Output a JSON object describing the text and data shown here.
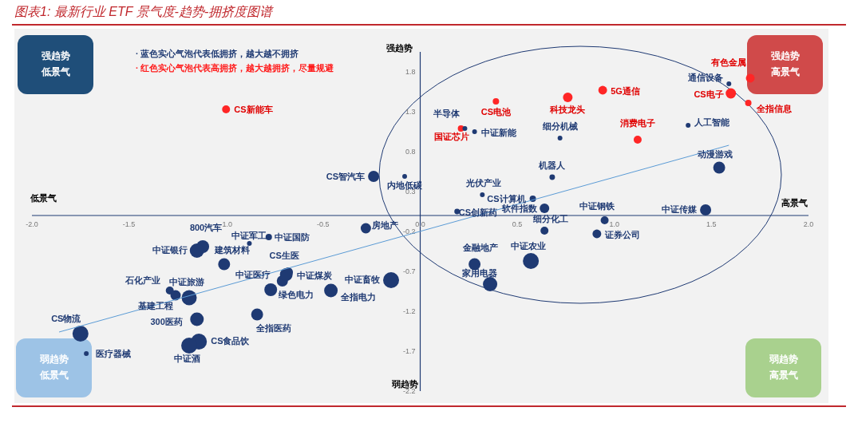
{
  "chart_data": {
    "type": "bubble",
    "title": "图表1: 最新行业 ETF 景气度-趋势-拥挤度图谱",
    "xlim": [
      -2,
      2.0
    ],
    "ylim": [
      -2.2,
      2.05
    ],
    "xticks": [
      {
        "value": -2,
        "label": "-2.0"
      },
      -1.5,
      {
        "value": -1,
        "label": "-1.0"
      },
      -0.5,
      {
        "value": 0,
        "label": "0.0"
      },
      0.5,
      {
        "value": 1,
        "label": "1.0"
      },
      1.5,
      {
        "value": 2,
        "label": "2.0"
      }
    ],
    "yticks": [
      -2.2,
      -1.7,
      -1.2,
      -0.7,
      -0.2,
      0.3,
      0.8,
      1.3,
      1.8
    ],
    "grid": false,
    "series": [
      {
        "type": "bubble",
        "color": "#ff2626",
        "x": [
          -1.0,
          0.39,
          0.21,
          0.76,
          0.94,
          1.12,
          1.6,
          1.7,
          1.69
        ],
        "values": [
          1.33,
          1.43,
          1.09,
          1.48,
          1.57,
          0.95,
          1.53,
          1.72,
          1.41
        ],
        "sizes": [
          0.25,
          0.16,
          0.16,
          0.36,
          0.3,
          0.25,
          0.42,
          0.3,
          0.16
        ]
      },
      {
        "type": "bubble",
        "color": "#1f3a73",
        "x": [
          0.23,
          0.28,
          0.72,
          1.38,
          1.59,
          1.54,
          0.68,
          0.32,
          0.58,
          0.64,
          0.19,
          0.95,
          1.47,
          0.64,
          0.91,
          0.28,
          0.57,
          0.36,
          -0.24,
          -0.08,
          -0.28,
          -1.12,
          -1.15,
          -0.88,
          -0.78,
          -1.01,
          -0.68,
          -0.71,
          -0.69,
          -0.77,
          -0.15,
          -0.46,
          -1.29,
          -1.26,
          -1.19,
          -1.15,
          -0.84,
          -1.75,
          -1.72,
          -1.14,
          -1.19
        ],
        "values": [
          1.09,
          1.05,
          0.97,
          1.13,
          1.65,
          0.6,
          0.48,
          0.26,
          0.21,
          0.09,
          0.05,
          -0.06,
          0.07,
          -0.19,
          -0.23,
          -0.61,
          -0.57,
          -0.86,
          0.49,
          0.49,
          -0.16,
          -0.39,
          -0.44,
          -0.35,
          -0.27,
          -0.61,
          -0.71,
          -0.82,
          -0.74,
          -0.93,
          -0.81,
          -0.94,
          -0.94,
          -1.0,
          -1.03,
          -1.3,
          -1.24,
          -1.48,
          -1.73,
          -1.58,
          -1.63
        ],
        "sizes": [
          0.09,
          0.09,
          0.09,
          0.09,
          0.09,
          0.56,
          0.12,
          0.09,
          0.16,
          0.36,
          0.12,
          0.25,
          0.49,
          0.25,
          0.3,
          0.56,
          1,
          0.81,
          0.49,
          0.09,
          0.42,
          0.64,
          0.81,
          0.09,
          0.16,
          0.56,
          0.36,
          0.49,
          0.64,
          0.64,
          1,
          0.72,
          0.25,
          0.42,
          0.9,
          0.72,
          0.56,
          1,
          0.09,
          1,
          1
        ]
      },
      {
        "type": "line",
        "color": "#5b9bd5",
        "x": [
          -1.86,
          1.59
        ],
        "values": [
          -1.46,
          0.88
        ]
      }
    ],
    "annotations": [
      "· 蓝色实心气泡代表低拥挤，越大越不拥挤",
      "· 红色实心气泡代表高拥挤，越大越拥挤，尽量规避",
      "强趋势",
      "低景气",
      "强趋势",
      "高景气",
      "弱趋势",
      "低景气",
      "弱趋势",
      "高景气",
      "强趋势",
      "弱趋势",
      "低景气",
      "高景气",
      {
        "text": "CS新能车",
        "x": -1.0,
        "y": 1.33
      },
      {
        "text": "CS电池",
        "x": 0.39,
        "y": 1.43
      },
      {
        "text": "国证芯片",
        "x": 0.21,
        "y": 1.09
      },
      {
        "text": "科技龙头",
        "x": 0.76,
        "y": 1.48
      },
      {
        "text": "5G通信",
        "x": 0.94,
        "y": 1.57
      },
      {
        "text": "消费电子",
        "x": 1.12,
        "y": 0.95
      },
      {
        "text": "CS电子",
        "x": 1.6,
        "y": 1.53
      },
      {
        "text": "有色金属",
        "x": 1.7,
        "y": 1.72
      },
      {
        "text": "全指信息",
        "x": 1.69,
        "y": 1.41
      },
      {
        "text": "半导体",
        "x": 0.23,
        "y": 1.09
      },
      {
        "text": "中证新能",
        "x": 0.28,
        "y": 1.05
      },
      {
        "text": "细分机械",
        "x": 0.72,
        "y": 0.97
      },
      {
        "text": "人工智能",
        "x": 1.38,
        "y": 1.13
      },
      {
        "text": "通信设备",
        "x": 1.59,
        "y": 1.65
      },
      {
        "text": "动漫游戏",
        "x": 1.54,
        "y": 0.6
      },
      {
        "text": "机器人",
        "x": 0.68,
        "y": 0.48
      },
      {
        "text": "光伏产业",
        "x": 0.32,
        "y": 0.26
      },
      {
        "text": "CS计算机",
        "x": 0.58,
        "y": 0.21
      },
      {
        "text": "软件指数",
        "x": 0.64,
        "y": 0.09
      },
      {
        "text": "CS创新药",
        "x": 0.19,
        "y": 0.05
      },
      {
        "text": "中证钢铁",
        "x": 0.95,
        "y": -0.06
      },
      {
        "text": "中证传媒",
        "x": 1.47,
        "y": 0.07
      },
      {
        "text": "细分化工",
        "x": 0.64,
        "y": -0.19
      },
      {
        "text": "证券公司",
        "x": 0.91,
        "y": -0.23
      },
      {
        "text": "金融地产",
        "x": 0.28,
        "y": -0.61
      },
      {
        "text": "中证农业",
        "x": 0.57,
        "y": -0.57
      },
      {
        "text": "家用电器",
        "x": 0.36,
        "y": -0.86
      },
      {
        "text": "CS智汽车",
        "x": -0.24,
        "y": 0.49
      },
      {
        "text": "内地低碳",
        "x": -0.08,
        "y": 0.49
      },
      {
        "text": "房地产",
        "x": -0.28,
        "y": -0.16
      },
      {
        "text": "800汽车",
        "x": -1.12,
        "y": -0.39
      },
      {
        "text": "中证银行",
        "x": -1.15,
        "y": -0.44
      },
      {
        "text": "中证军工",
        "x": -0.88,
        "y": -0.35
      },
      {
        "text": "中证国防",
        "x": -0.78,
        "y": -0.27
      },
      {
        "text": "建筑材料",
        "x": -1.01,
        "y": -0.61
      },
      {
        "text": "CS生医",
        "x": -0.68,
        "y": -0.71
      },
      {
        "text": "中证医疗",
        "x": -0.71,
        "y": -0.82
      },
      {
        "text": "中证煤炭",
        "x": -0.69,
        "y": -0.74
      },
      {
        "text": "绿色电力",
        "x": -0.77,
        "y": -0.93
      },
      {
        "text": "中证畜牧",
        "x": -0.15,
        "y": -0.81
      },
      {
        "text": "全指电力",
        "x": -0.46,
        "y": -0.94
      },
      {
        "text": "石化产业",
        "x": -1.29,
        "y": -0.94
      },
      {
        "text": "基建工程",
        "x": -1.26,
        "y": -1.0
      },
      {
        "text": "中证旅游",
        "x": -1.19,
        "y": -1.03
      },
      {
        "text": "300医药",
        "x": -1.15,
        "y": -1.3
      },
      {
        "text": "全指医药",
        "x": -0.84,
        "y": -1.24
      },
      {
        "text": "CS物流",
        "x": -1.75,
        "y": -1.48
      },
      {
        "text": "医疗器械",
        "x": -1.72,
        "y": -1.73
      },
      {
        "text": "CS食品饮",
        "x": -1.14,
        "y": -1.58
      },
      {
        "text": "中证酒",
        "x": -1.19,
        "y": -1.63
      }
    ]
  }
}
